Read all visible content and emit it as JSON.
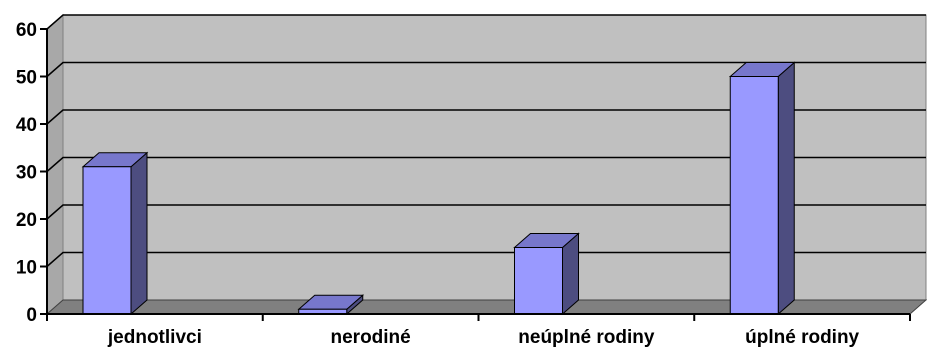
{
  "chart_data": {
    "type": "bar",
    "categories": [
      "jednotlivci",
      "nerodiné",
      "neúplné rodiny",
      "úplné rodiny"
    ],
    "values": [
      31,
      1,
      14,
      50
    ],
    "ylim": [
      0,
      60
    ],
    "yticks": [
      0,
      10,
      20,
      30,
      40,
      50,
      60
    ],
    "grid": true,
    "three_d": true,
    "colors": {
      "bar_front": "#9999ff",
      "bar_side": "#4d4d80",
      "bar_top": "#7777cc",
      "wall": "#c0c0c0",
      "floor": "#808080",
      "gridline": "#000000"
    }
  }
}
